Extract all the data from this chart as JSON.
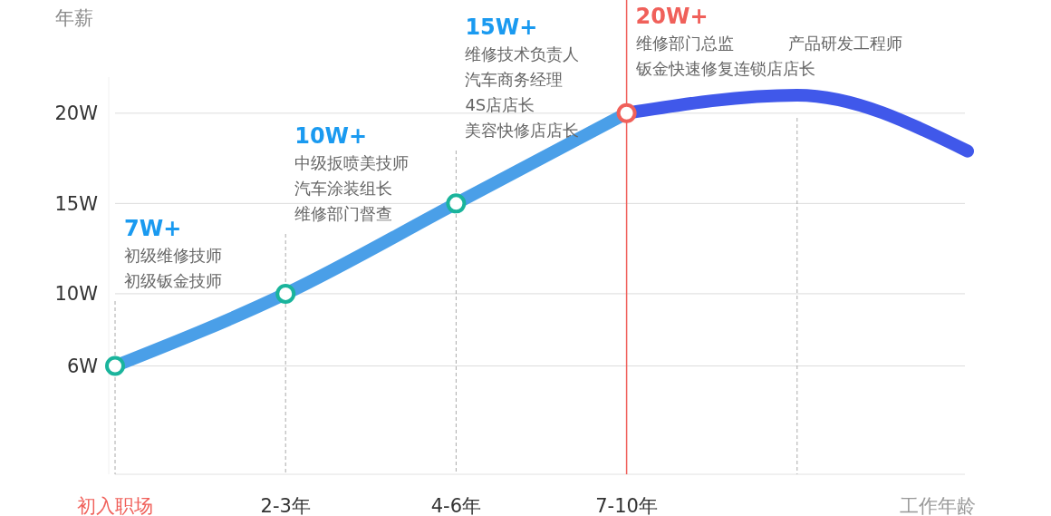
{
  "chart_data": {
    "type": "line",
    "ylabel": "年薪",
    "xlabel": "工作年龄",
    "categories": [
      "初入职场",
      "2-3年",
      "4-6年",
      "7-10年",
      null,
      null
    ],
    "ylim": [
      0,
      22
    ],
    "yticks": [
      {
        "value": 6,
        "label": "6W"
      },
      {
        "value": 10,
        "label": "10W"
      },
      {
        "value": 15,
        "label": "15W"
      },
      {
        "value": 20,
        "label": "20W"
      }
    ],
    "grid": true,
    "series": [
      {
        "color": "#4a9fe8",
        "marker": "circle",
        "values": [
          6,
          10,
          15,
          20,
          null,
          null
        ]
      },
      {
        "color": "#4058ea",
        "marker": "none",
        "values": [
          null,
          null,
          null,
          20,
          21,
          17.9
        ]
      }
    ],
    "ref_lines": [
      {
        "axis": "x",
        "value": "7-10年",
        "color": "#f0605a"
      }
    ],
    "annotations": [
      "7W+",
      "初级维修技师",
      "初级钣金技师",
      "10W+",
      "中级扳喷美技师",
      "汽车涂装组长",
      "维修部门督查",
      "15W+",
      "维修技术负责人",
      "汽车商务经理",
      "4S店店长",
      "美容快修店店长",
      "20W+",
      "维修部门总监",
      "钣金快速修复连锁店店长",
      "产品研发工程师"
    ]
  }
}
